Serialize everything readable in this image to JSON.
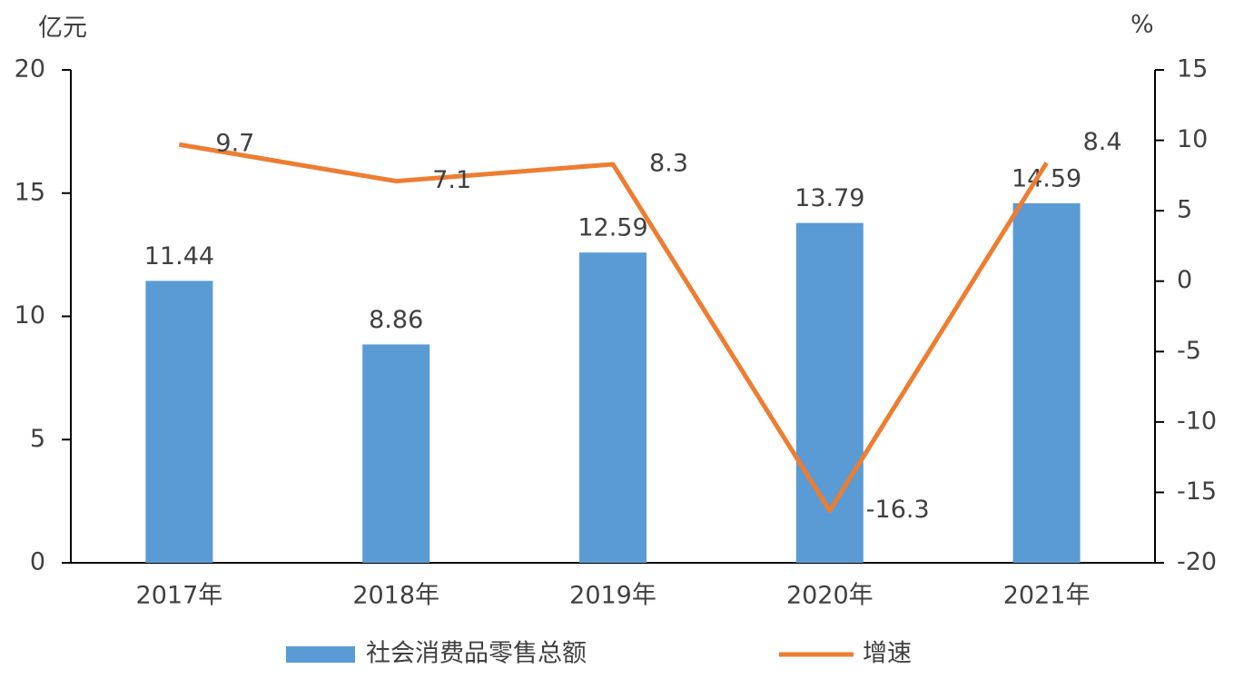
{
  "chart_data": {
    "type": "bar",
    "y_label": "亿元",
    "y2_label": "%",
    "categories": [
      "2017年",
      "2018年",
      "2019年",
      "2020年",
      "2021年"
    ],
    "series": [
      {
        "name": "社会消费品零售总额",
        "type": "bar",
        "color": "#5b9bd5",
        "values": [
          11.44,
          8.86,
          12.59,
          13.79,
          14.59
        ]
      },
      {
        "name": "增速",
        "type": "line",
        "axis": "y2",
        "color": "#ed7d31",
        "values": [
          9.7,
          7.1,
          8.3,
          -16.3,
          8.4
        ]
      }
    ],
    "ylim": [
      0,
      20
    ],
    "yticks": [
      0,
      5,
      10,
      15,
      20
    ],
    "y2lim": [
      -20,
      15
    ],
    "y2ticks": [
      -20,
      -15,
      -10,
      -5,
      0,
      5,
      10,
      15
    ],
    "grid": false,
    "legend": "bottom"
  }
}
